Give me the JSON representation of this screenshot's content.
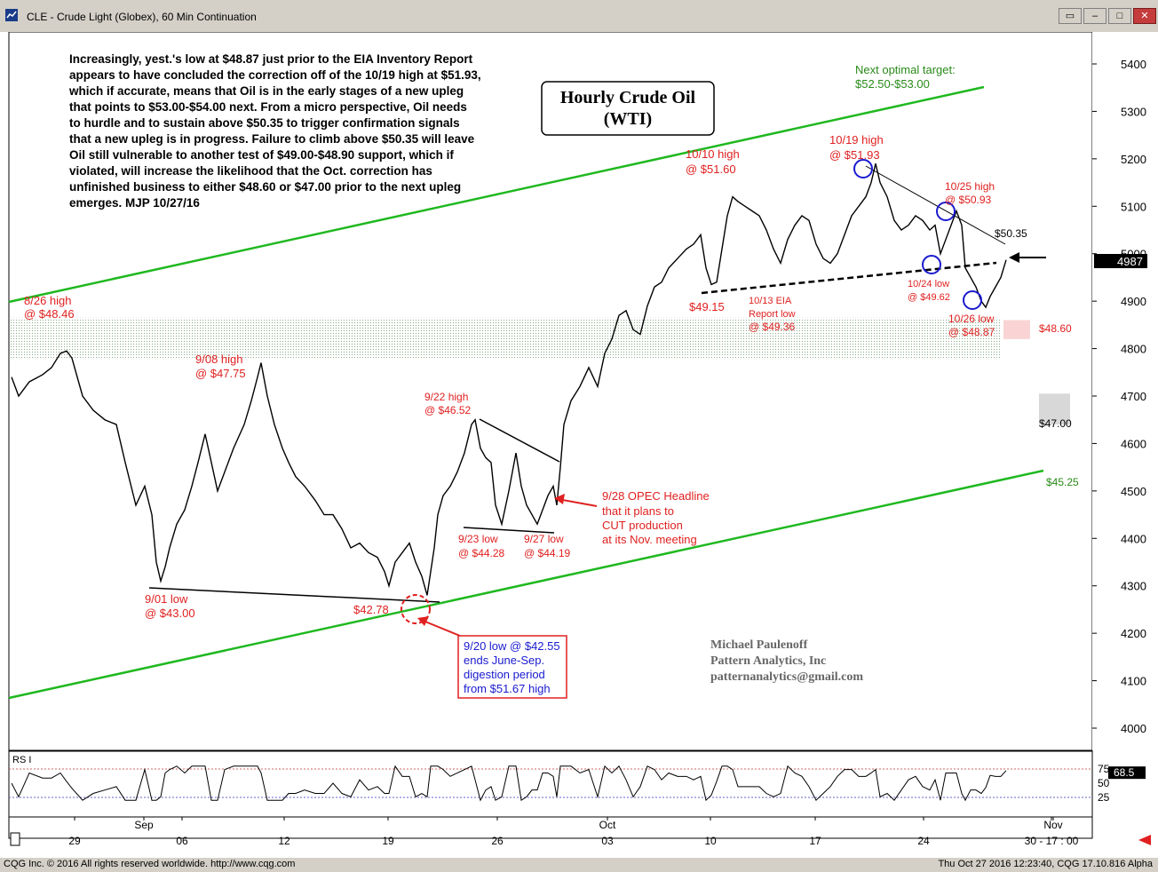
{
  "window": {
    "title": "CLE - Crude Light (Globex), 60 Min Continuation",
    "buttons": [
      "▭",
      "‒",
      "□",
      "✕"
    ]
  },
  "status": {
    "copyright": "CQG Inc. © 2016 All rights reserved worldwide. http://www.cqg.com",
    "timestamp": "Thu Oct 27 2016 12:23:40, CQG 17.10.816 Alpha"
  },
  "chart_data": {
    "type": "line",
    "title": "Hourly Crude Oil\n(WTI)",
    "commentary": [
      "Increasingly, yest.'s low at $48.87 just prior to the EIA Inventory Report",
      "appears to have concluded the correction off of the 10/19 high at $51.93,",
      "which if accurate, means that Oil is in the early stages of a new upleg",
      "that points to $53.00-$54.00 next. From a micro perspective, Oil needs",
      "to hurdle and to sustain above $50.35 to trigger confirmation signals",
      "that a new upleg is in progress. Failure to climb above $50.35 will leave",
      "Oil still vulnerable to another test of $49.00-$48.90 support, which if",
      "violated, will increase the likelihood that the Oct. correction has",
      "unfinished business to either $48.60 or $47.00 prior to the next upleg",
      "emerges.  MJP 10/27/16"
    ],
    "ylim": [
      3900,
      5450
    ],
    "y_ticks": [
      4000,
      4100,
      4200,
      4300,
      4400,
      4500,
      4600,
      4700,
      4800,
      4900,
      5000,
      5100,
      5200,
      5300,
      5400
    ],
    "x_ticks": [
      "29",
      "Sep",
      "06",
      "12",
      "19",
      "26",
      "Oct",
      "03",
      "10",
      "17",
      "24",
      "Nov",
      "30 - 17 : 00"
    ],
    "last_price": "4987",
    "price_series": [
      [
        0,
        4740
      ],
      [
        8,
        4700
      ],
      [
        20,
        4730
      ],
      [
        35,
        4745
      ],
      [
        45,
        4760
      ],
      [
        55,
        4790
      ],
      [
        62,
        4795
      ],
      [
        68,
        4780
      ],
      [
        80,
        4700
      ],
      [
        92,
        4670
      ],
      [
        105,
        4650
      ],
      [
        118,
        4640
      ],
      [
        128,
        4560
      ],
      [
        140,
        4470
      ],
      [
        150,
        4510
      ],
      [
        158,
        4450
      ],
      [
        163,
        4350
      ],
      [
        168,
        4310
      ],
      [
        173,
        4340
      ],
      [
        178,
        4380
      ],
      [
        186,
        4430
      ],
      [
        195,
        4460
      ],
      [
        203,
        4510
      ],
      [
        210,
        4560
      ],
      [
        218,
        4620
      ],
      [
        225,
        4560
      ],
      [
        232,
        4500
      ],
      [
        240,
        4540
      ],
      [
        250,
        4590
      ],
      [
        262,
        4640
      ],
      [
        270,
        4690
      ],
      [
        277,
        4740
      ],
      [
        281,
        4770
      ],
      [
        288,
        4700
      ],
      [
        296,
        4640
      ],
      [
        305,
        4590
      ],
      [
        312,
        4560
      ],
      [
        320,
        4530
      ],
      [
        330,
        4510
      ],
      [
        342,
        4480
      ],
      [
        352,
        4450
      ],
      [
        362,
        4450
      ],
      [
        372,
        4420
      ],
      [
        382,
        4380
      ],
      [
        392,
        4390
      ],
      [
        402,
        4370
      ],
      [
        412,
        4360
      ],
      [
        420,
        4330
      ],
      [
        425,
        4300
      ],
      [
        432,
        4350
      ],
      [
        440,
        4370
      ],
      [
        448,
        4390
      ],
      [
        455,
        4350
      ],
      [
        462,
        4320
      ],
      [
        468,
        4280
      ],
      [
        472,
        4330
      ],
      [
        476,
        4380
      ],
      [
        480,
        4450
      ],
      [
        486,
        4490
      ],
      [
        494,
        4510
      ],
      [
        502,
        4540
      ],
      [
        510,
        4580
      ],
      [
        518,
        4640
      ],
      [
        522,
        4650
      ],
      [
        528,
        4590
      ],
      [
        534,
        4570
      ],
      [
        540,
        4560
      ],
      [
        545,
        4470
      ],
      [
        552,
        4430
      ],
      [
        560,
        4500
      ],
      [
        568,
        4580
      ],
      [
        574,
        4510
      ],
      [
        580,
        4470
      ],
      [
        586,
        4450
      ],
      [
        592,
        4430
      ],
      [
        598,
        4460
      ],
      [
        604,
        4490
      ],
      [
        610,
        4510
      ],
      [
        614,
        4470
      ],
      [
        618,
        4550
      ],
      [
        622,
        4640
      ],
      [
        630,
        4690
      ],
      [
        640,
        4720
      ],
      [
        650,
        4760
      ],
      [
        660,
        4720
      ],
      [
        668,
        4790
      ],
      [
        676,
        4820
      ],
      [
        684,
        4870
      ],
      [
        692,
        4880
      ],
      [
        700,
        4840
      ],
      [
        708,
        4830
      ],
      [
        716,
        4890
      ],
      [
        724,
        4930
      ],
      [
        732,
        4940
      ],
      [
        740,
        4970
      ],
      [
        750,
        4990
      ],
      [
        760,
        5010
      ],
      [
        768,
        5020
      ],
      [
        776,
        5040
      ],
      [
        782,
        4970
      ],
      [
        788,
        4935
      ],
      [
        794,
        4940
      ],
      [
        800,
        5010
      ],
      [
        806,
        5080
      ],
      [
        812,
        5120
      ],
      [
        818,
        5110
      ],
      [
        826,
        5100
      ],
      [
        834,
        5090
      ],
      [
        842,
        5080
      ],
      [
        850,
        5050
      ],
      [
        858,
        5010
      ],
      [
        866,
        4980
      ],
      [
        874,
        5030
      ],
      [
        882,
        5060
      ],
      [
        890,
        5080
      ],
      [
        898,
        5070
      ],
      [
        906,
        5020
      ],
      [
        914,
        4990
      ],
      [
        922,
        4980
      ],
      [
        930,
        5000
      ],
      [
        938,
        5040
      ],
      [
        946,
        5080
      ],
      [
        954,
        5100
      ],
      [
        962,
        5120
      ],
      [
        968,
        5150
      ],
      [
        973,
        5190
      ],
      [
        978,
        5150
      ],
      [
        986,
        5120
      ],
      [
        994,
        5070
      ],
      [
        1002,
        5050
      ],
      [
        1010,
        5060
      ],
      [
        1018,
        5080
      ],
      [
        1026,
        5070
      ],
      [
        1034,
        5050
      ],
      [
        1040,
        5060
      ],
      [
        1046,
        5000
      ],
      [
        1052,
        5030
      ],
      [
        1058,
        5060
      ],
      [
        1064,
        5090
      ],
      [
        1070,
        5060
      ],
      [
        1074,
        4970
      ],
      [
        1080,
        4950
      ],
      [
        1086,
        4930
      ],
      [
        1092,
        4900
      ],
      [
        1097,
        4887
      ],
      [
        1102,
        4910
      ],
      [
        1108,
        4930
      ],
      [
        1114,
        4950
      ],
      [
        1120,
        4987
      ]
    ],
    "rsi": {
      "label": "RS I",
      "ticks": [
        "75",
        "50",
        "25"
      ],
      "last": "68.5"
    },
    "annotations": [
      {
        "text": "Hourly Crude Oil",
        "color": "#000"
      },
      {
        "text": "Next optimal target:",
        "color": "#2a8a1a"
      },
      {
        "text": "$52.50-$53.00",
        "color": "#2a8a1a"
      },
      {
        "text": "10/10 high",
        "color": "#e02020"
      },
      {
        "text": "@ $51.60",
        "color": "#e02020"
      },
      {
        "text": "10/19 high",
        "color": "#e02020"
      },
      {
        "text": "@ $51.93",
        "color": "#e02020"
      },
      {
        "text": "10/25 high",
        "color": "#e02020"
      },
      {
        "text": "@ $50.93",
        "color": "#e02020"
      },
      {
        "text": "$50.35",
        "color": "#000"
      },
      {
        "text": "10/24 low",
        "color": "#e02020"
      },
      {
        "text": "@ $49.62",
        "color": "#e02020"
      },
      {
        "text": "10/26 low",
        "color": "#e02020"
      },
      {
        "text": "@ $48.87",
        "color": "#e02020"
      },
      {
        "text": "$49.15",
        "color": "#e02020"
      },
      {
        "text": "10/13 EIA",
        "color": "#e02020"
      },
      {
        "text": "Report low",
        "color": "#e02020"
      },
      {
        "text": "@ $49.36",
        "color": "#e02020"
      },
      {
        "text": "8/26 high",
        "color": "#e02020"
      },
      {
        "text": "@ $48.46",
        "color": "#e02020"
      },
      {
        "text": "9/08 high",
        "color": "#e02020"
      },
      {
        "text": "@ $47.75",
        "color": "#e02020"
      },
      {
        "text": "9/22 high",
        "color": "#e02020"
      },
      {
        "text": "@ $46.52",
        "color": "#e02020"
      },
      {
        "text": "9/23 low",
        "color": "#e02020"
      },
      {
        "text": "@ $44.28",
        "color": "#e02020"
      },
      {
        "text": "9/27 low",
        "color": "#e02020"
      },
      {
        "text": "@ $44.19",
        "color": "#e02020"
      },
      {
        "text": "9/28 OPEC Headline",
        "color": "#e02020"
      },
      {
        "text": "that it plans to",
        "color": "#e02020"
      },
      {
        "text": "CUT production",
        "color": "#e02020"
      },
      {
        "text": "at its Nov. meeting",
        "color": "#e02020"
      },
      {
        "text": "9/01 low",
        "color": "#e02020"
      },
      {
        "text": "@ $43.00",
        "color": "#e02020"
      },
      {
        "text": "$42.78",
        "color": "#e02020"
      },
      {
        "text": "9/20 low @ $42.55",
        "color": "#1a1ad0"
      },
      {
        "text": "ends June-Sep.",
        "color": "#1a1ad0"
      },
      {
        "text": "digestion period",
        "color": "#1a1ad0"
      },
      {
        "text": "from $51.67 high",
        "color": "#1a1ad0"
      },
      {
        "text": "$48.60",
        "color": "#e02020"
      },
      {
        "text": "$47.00",
        "color": "#000"
      },
      {
        "text": "$45.25",
        "color": "#2a8a1a"
      },
      {
        "text": "Michael Paulenoff",
        "color": "#666"
      },
      {
        "text": "Pattern Analytics, Inc",
        "color": "#666"
      },
      {
        "text": "patternanalytics@gmail.com",
        "color": "#666"
      }
    ]
  }
}
